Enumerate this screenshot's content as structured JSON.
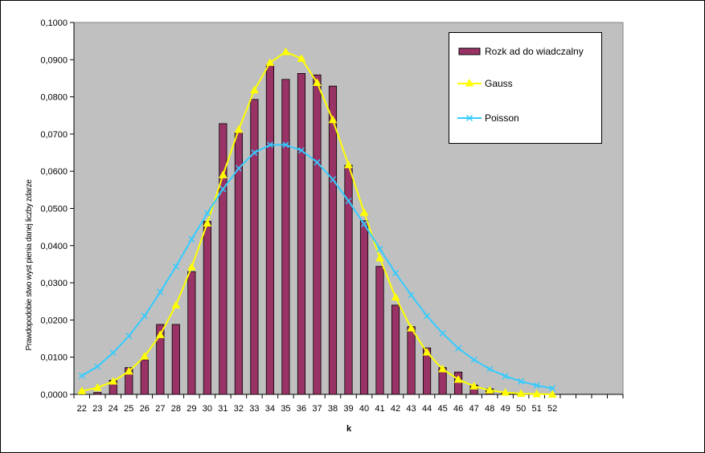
{
  "chart_data": {
    "type": "bar+line",
    "xlabel": "k",
    "ylabel": "Prawdopodobieństwo wystąpienia danej liczby zdarzeń",
    "ylim": [
      0,
      0.1
    ],
    "yticks": [
      "0,0000",
      "0,0100",
      "0,0200",
      "0,0300",
      "0,0400",
      "0,0500",
      "0,0600",
      "0,0700",
      "0,0800",
      "0,0900",
      "0,1000"
    ],
    "categories": [
      "22",
      "23",
      "24",
      "25",
      "26",
      "27",
      "28",
      "29",
      "30",
      "31",
      "32",
      "33",
      "34",
      "35",
      "36",
      "37",
      "38",
      "39",
      "40",
      "41",
      "42",
      "43",
      "44",
      "45",
      "46",
      "47",
      "48",
      "49",
      "50",
      "51",
      "52"
    ],
    "extra_slots": 4,
    "series": [
      {
        "name": "Rozkład doświadczalny",
        "type": "bar",
        "color": "#993366",
        "values": [
          0.0002,
          0.0005,
          0.0038,
          0.0072,
          0.0093,
          0.0188,
          0.0188,
          0.033,
          0.0465,
          0.0728,
          0.0704,
          0.0793,
          0.0886,
          0.0847,
          0.0863,
          0.0859,
          0.0829,
          0.0616,
          0.0467,
          0.0344,
          0.024,
          0.0182,
          0.0125,
          0.0072,
          0.006,
          0.0025,
          0.0015,
          0.0004,
          0.0002,
          0.0001,
          0.0
        ]
      },
      {
        "name": "Gauss",
        "type": "line",
        "marker": "triangle",
        "color": "#FFFF00",
        "values": [
          0.0009,
          0.0018,
          0.0035,
          0.0062,
          0.0102,
          0.016,
          0.024,
          0.0342,
          0.046,
          0.059,
          0.0712,
          0.0818,
          0.0892,
          0.0921,
          0.0903,
          0.0838,
          0.0738,
          0.0617,
          0.0489,
          0.0366,
          0.0261,
          0.0178,
          0.0113,
          0.0068,
          0.004,
          0.0022,
          0.0011,
          0.0005,
          0.0002,
          0.0001,
          0.0
        ]
      },
      {
        "name": "Poisson",
        "type": "line",
        "marker": "x",
        "color": "#33CCFF",
        "values": [
          0.005,
          0.0075,
          0.0112,
          0.0157,
          0.0211,
          0.0275,
          0.0344,
          0.0417,
          0.0487,
          0.0552,
          0.0608,
          0.065,
          0.0671,
          0.0671,
          0.0656,
          0.0624,
          0.0578,
          0.052,
          0.0458,
          0.0391,
          0.0326,
          0.0267,
          0.0211,
          0.0164,
          0.0124,
          0.0093,
          0.0068,
          0.0049,
          0.0035,
          0.0024,
          0.0016
        ]
      }
    ]
  },
  "legend": {
    "items": [
      {
        "label": "Rozk ad do  wiadczalny"
      },
      {
        "label": "Gauss"
      },
      {
        "label": "Poisson"
      }
    ]
  },
  "axis": {
    "x_title": "k",
    "y_title": "Prawdopodobie stwo wyst pienia danej liczby zdarze "
  }
}
